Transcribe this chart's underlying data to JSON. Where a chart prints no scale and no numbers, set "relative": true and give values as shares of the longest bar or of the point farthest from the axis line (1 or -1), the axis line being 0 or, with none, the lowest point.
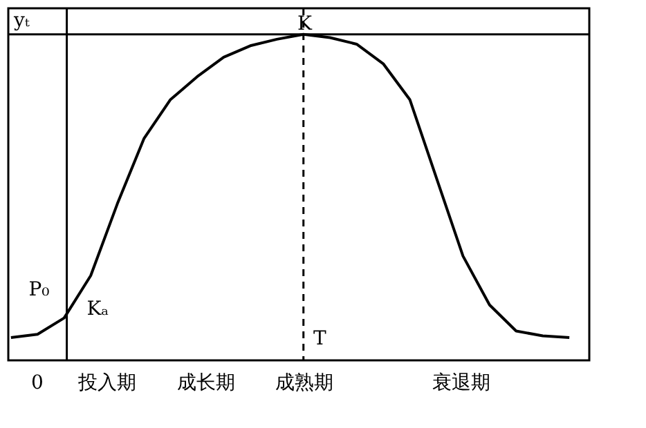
{
  "chart_data": {
    "type": "line",
    "relative": true,
    "line_style": "solid",
    "categories": [
      null,
      null,
      null,
      null,
      null,
      null,
      null,
      null,
      null,
      null,
      null,
      null,
      null,
      null,
      null,
      null,
      null,
      null,
      null,
      null,
      null,
      null
    ],
    "series": [
      {
        "color": "#000000",
        "values": [
          0.07,
          0.08,
          0.13,
          0.26,
          0.48,
          0.68,
          0.8,
          0.87,
          0.93,
          0.965,
          0.985,
          1,
          0.99,
          0.97,
          0.91,
          0.8,
          0.56,
          0.32,
          0.17,
          0.09,
          0.075,
          0.07
        ]
      }
    ],
    "ref_lines": [
      {
        "axis": "y",
        "value": 1,
        "label": "yₜ",
        "color": "#000000",
        "line_style": "solid"
      }
    ],
    "annotations": [
      "K",
      "T",
      "P₀",
      "Kₐ",
      "0",
      "投入期",
      "成长期",
      "成熟期",
      "衰退期"
    ]
  }
}
